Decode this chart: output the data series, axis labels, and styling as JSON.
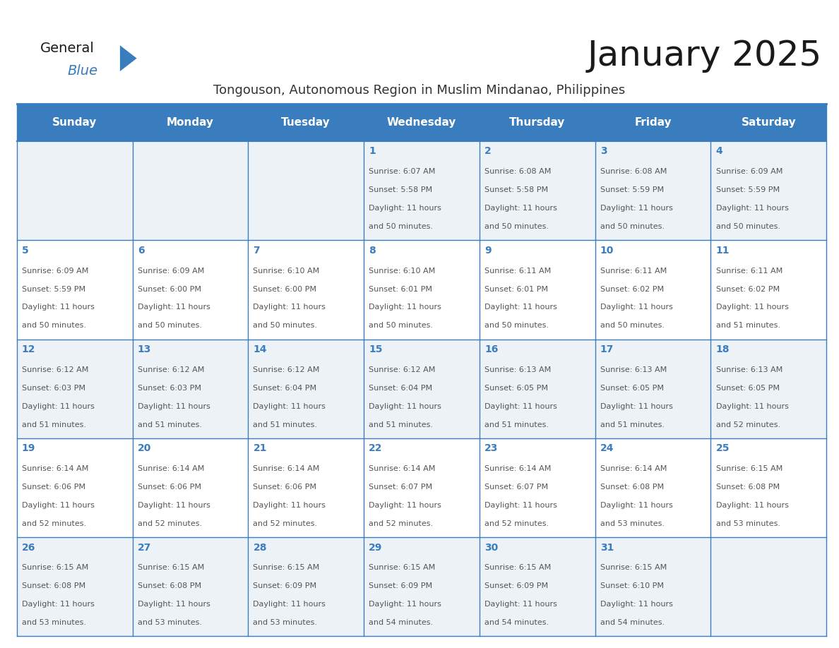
{
  "title": "January 2025",
  "subtitle": "Tongouson, Autonomous Region in Muslim Mindanao, Philippines",
  "header_bg_color": "#3a7dbf",
  "header_text_color": "#ffffff",
  "day_names": [
    "Sunday",
    "Monday",
    "Tuesday",
    "Wednesday",
    "Thursday",
    "Friday",
    "Saturday"
  ],
  "row0_bg": "#edf2f7",
  "row1_bg": "#ffffff",
  "row2_bg": "#edf2f7",
  "row3_bg": "#ffffff",
  "row4_bg": "#edf2f7",
  "date_color": "#3a7dbf",
  "text_color": "#555555",
  "border_color": "#3a7dbf",
  "title_color": "#1a1a1a",
  "subtitle_color": "#333333",
  "logo_general_color": "#1a1a1a",
  "logo_blue_color": "#3a7dbf",
  "days": [
    {
      "date": 1,
      "col": 3,
      "row": 0,
      "sunrise": "6:07 AM",
      "sunset": "5:58 PM",
      "dl1": "Daylight: 11 hours",
      "dl2": "and 50 minutes."
    },
    {
      "date": 2,
      "col": 4,
      "row": 0,
      "sunrise": "6:08 AM",
      "sunset": "5:58 PM",
      "dl1": "Daylight: 11 hours",
      "dl2": "and 50 minutes."
    },
    {
      "date": 3,
      "col": 5,
      "row": 0,
      "sunrise": "6:08 AM",
      "sunset": "5:59 PM",
      "dl1": "Daylight: 11 hours",
      "dl2": "and 50 minutes."
    },
    {
      "date": 4,
      "col": 6,
      "row": 0,
      "sunrise": "6:09 AM",
      "sunset": "5:59 PM",
      "dl1": "Daylight: 11 hours",
      "dl2": "and 50 minutes."
    },
    {
      "date": 5,
      "col": 0,
      "row": 1,
      "sunrise": "6:09 AM",
      "sunset": "5:59 PM",
      "dl1": "Daylight: 11 hours",
      "dl2": "and 50 minutes."
    },
    {
      "date": 6,
      "col": 1,
      "row": 1,
      "sunrise": "6:09 AM",
      "sunset": "6:00 PM",
      "dl1": "Daylight: 11 hours",
      "dl2": "and 50 minutes."
    },
    {
      "date": 7,
      "col": 2,
      "row": 1,
      "sunrise": "6:10 AM",
      "sunset": "6:00 PM",
      "dl1": "Daylight: 11 hours",
      "dl2": "and 50 minutes."
    },
    {
      "date": 8,
      "col": 3,
      "row": 1,
      "sunrise": "6:10 AM",
      "sunset": "6:01 PM",
      "dl1": "Daylight: 11 hours",
      "dl2": "and 50 minutes."
    },
    {
      "date": 9,
      "col": 4,
      "row": 1,
      "sunrise": "6:11 AM",
      "sunset": "6:01 PM",
      "dl1": "Daylight: 11 hours",
      "dl2": "and 50 minutes."
    },
    {
      "date": 10,
      "col": 5,
      "row": 1,
      "sunrise": "6:11 AM",
      "sunset": "6:02 PM",
      "dl1": "Daylight: 11 hours",
      "dl2": "and 50 minutes."
    },
    {
      "date": 11,
      "col": 6,
      "row": 1,
      "sunrise": "6:11 AM",
      "sunset": "6:02 PM",
      "dl1": "Daylight: 11 hours",
      "dl2": "and 51 minutes."
    },
    {
      "date": 12,
      "col": 0,
      "row": 2,
      "sunrise": "6:12 AM",
      "sunset": "6:03 PM",
      "dl1": "Daylight: 11 hours",
      "dl2": "and 51 minutes."
    },
    {
      "date": 13,
      "col": 1,
      "row": 2,
      "sunrise": "6:12 AM",
      "sunset": "6:03 PM",
      "dl1": "Daylight: 11 hours",
      "dl2": "and 51 minutes."
    },
    {
      "date": 14,
      "col": 2,
      "row": 2,
      "sunrise": "6:12 AM",
      "sunset": "6:04 PM",
      "dl1": "Daylight: 11 hours",
      "dl2": "and 51 minutes."
    },
    {
      "date": 15,
      "col": 3,
      "row": 2,
      "sunrise": "6:12 AM",
      "sunset": "6:04 PM",
      "dl1": "Daylight: 11 hours",
      "dl2": "and 51 minutes."
    },
    {
      "date": 16,
      "col": 4,
      "row": 2,
      "sunrise": "6:13 AM",
      "sunset": "6:05 PM",
      "dl1": "Daylight: 11 hours",
      "dl2": "and 51 minutes."
    },
    {
      "date": 17,
      "col": 5,
      "row": 2,
      "sunrise": "6:13 AM",
      "sunset": "6:05 PM",
      "dl1": "Daylight: 11 hours",
      "dl2": "and 51 minutes."
    },
    {
      "date": 18,
      "col": 6,
      "row": 2,
      "sunrise": "6:13 AM",
      "sunset": "6:05 PM",
      "dl1": "Daylight: 11 hours",
      "dl2": "and 52 minutes."
    },
    {
      "date": 19,
      "col": 0,
      "row": 3,
      "sunrise": "6:14 AM",
      "sunset": "6:06 PM",
      "dl1": "Daylight: 11 hours",
      "dl2": "and 52 minutes."
    },
    {
      "date": 20,
      "col": 1,
      "row": 3,
      "sunrise": "6:14 AM",
      "sunset": "6:06 PM",
      "dl1": "Daylight: 11 hours",
      "dl2": "and 52 minutes."
    },
    {
      "date": 21,
      "col": 2,
      "row": 3,
      "sunrise": "6:14 AM",
      "sunset": "6:06 PM",
      "dl1": "Daylight: 11 hours",
      "dl2": "and 52 minutes."
    },
    {
      "date": 22,
      "col": 3,
      "row": 3,
      "sunrise": "6:14 AM",
      "sunset": "6:07 PM",
      "dl1": "Daylight: 11 hours",
      "dl2": "and 52 minutes."
    },
    {
      "date": 23,
      "col": 4,
      "row": 3,
      "sunrise": "6:14 AM",
      "sunset": "6:07 PM",
      "dl1": "Daylight: 11 hours",
      "dl2": "and 52 minutes."
    },
    {
      "date": 24,
      "col": 5,
      "row": 3,
      "sunrise": "6:14 AM",
      "sunset": "6:08 PM",
      "dl1": "Daylight: 11 hours",
      "dl2": "and 53 minutes."
    },
    {
      "date": 25,
      "col": 6,
      "row": 3,
      "sunrise": "6:15 AM",
      "sunset": "6:08 PM",
      "dl1": "Daylight: 11 hours",
      "dl2": "and 53 minutes."
    },
    {
      "date": 26,
      "col": 0,
      "row": 4,
      "sunrise": "6:15 AM",
      "sunset": "6:08 PM",
      "dl1": "Daylight: 11 hours",
      "dl2": "and 53 minutes."
    },
    {
      "date": 27,
      "col": 1,
      "row": 4,
      "sunrise": "6:15 AM",
      "sunset": "6:08 PM",
      "dl1": "Daylight: 11 hours",
      "dl2": "and 53 minutes."
    },
    {
      "date": 28,
      "col": 2,
      "row": 4,
      "sunrise": "6:15 AM",
      "sunset": "6:09 PM",
      "dl1": "Daylight: 11 hours",
      "dl2": "and 53 minutes."
    },
    {
      "date": 29,
      "col": 3,
      "row": 4,
      "sunrise": "6:15 AM",
      "sunset": "6:09 PM",
      "dl1": "Daylight: 11 hours",
      "dl2": "and 54 minutes."
    },
    {
      "date": 30,
      "col": 4,
      "row": 4,
      "sunrise": "6:15 AM",
      "sunset": "6:09 PM",
      "dl1": "Daylight: 11 hours",
      "dl2": "and 54 minutes."
    },
    {
      "date": 31,
      "col": 5,
      "row": 4,
      "sunrise": "6:15 AM",
      "sunset": "6:10 PM",
      "dl1": "Daylight: 11 hours",
      "dl2": "and 54 minutes."
    }
  ]
}
